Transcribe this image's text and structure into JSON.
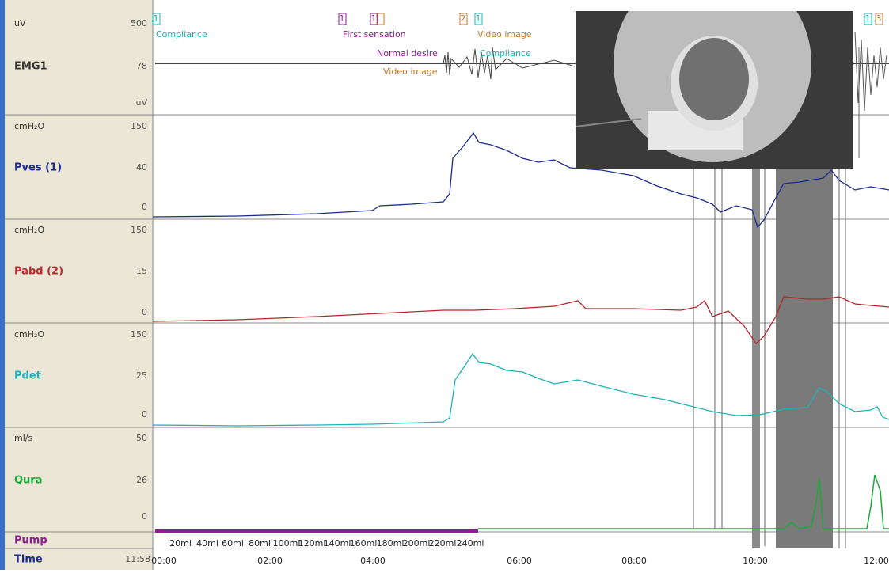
{
  "channels": [
    {
      "unit": "uV",
      "max": "500",
      "name": "EMG1",
      "mid": "78",
      "min": "uV"
    },
    {
      "unit": "cmH₂O",
      "max": "150",
      "name": "Pves (1)",
      "mid": "40",
      "min": "0"
    },
    {
      "unit": "cmH₂O",
      "max": "150",
      "name": "Pabd (2)",
      "mid": "15",
      "min": "0"
    },
    {
      "unit": "cmH₂O",
      "max": "150",
      "name": "Pdet",
      "mid": "25",
      "min": "0"
    },
    {
      "unit": "ml/s",
      "max": "50",
      "name": "Qura",
      "mid": "26",
      "min": "0"
    }
  ],
  "pump": "Pump",
  "time": {
    "label": "Time",
    "value": "11:58",
    "ticks": [
      "00:00",
      "02:00",
      "04:00",
      "06:00",
      "08:00",
      "10:00",
      "12:00"
    ]
  },
  "volumes": [
    "20ml",
    "40ml",
    "60ml",
    "80ml",
    "100ml",
    "120ml",
    "140ml",
    "160ml",
    "180ml",
    "200ml",
    "220ml",
    "240ml"
  ],
  "events": [
    {
      "number": "1",
      "label": "Compliance"
    },
    {
      "number": "1",
      "label": "First sensation"
    },
    {
      "number": "1",
      "label": ""
    },
    {
      "number": "2",
      "label": ""
    },
    {
      "number": "1",
      "label": "Video image"
    },
    {
      "number": "1",
      "label": ""
    },
    {
      "number": "3",
      "label": ""
    }
  ],
  "annotations": [
    "Normal desire",
    "Video image",
    "Compliance"
  ]
}
